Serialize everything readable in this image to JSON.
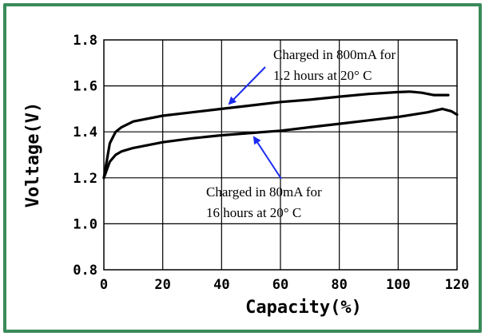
{
  "chart_data": {
    "type": "line",
    "title": "",
    "xlabel": "Capacity(%)",
    "ylabel": "Voltage(V)",
    "xlim": [
      0,
      120
    ],
    "ylim": [
      0.8,
      1.8
    ],
    "x_ticks": [
      "0",
      "20",
      "40",
      "60",
      "80",
      "100",
      "120"
    ],
    "y_ticks": [
      "0.8",
      "1.0",
      "1.2",
      "1.4",
      "1.6",
      "1.8"
    ],
    "grid": true,
    "series": [
      {
        "x": [
          0,
          2,
          4,
          6,
          10,
          20,
          30,
          40,
          50,
          60,
          70,
          80,
          90,
          100,
          104,
          108,
          112,
          117
        ],
        "y": [
          1.2,
          1.35,
          1.4,
          1.42,
          1.445,
          1.47,
          1.485,
          1.5,
          1.515,
          1.53,
          1.54,
          1.553,
          1.565,
          1.573,
          1.575,
          1.57,
          1.56,
          1.56
        ]
      },
      {
        "x": [
          0,
          2,
          4,
          6,
          10,
          20,
          30,
          40,
          50,
          60,
          70,
          80,
          90,
          100,
          110,
          115,
          118,
          120
        ],
        "y": [
          1.2,
          1.27,
          1.3,
          1.315,
          1.33,
          1.355,
          1.372,
          1.385,
          1.395,
          1.405,
          1.42,
          1.435,
          1.45,
          1.465,
          1.485,
          1.5,
          1.49,
          1.475
        ]
      }
    ],
    "annotations": [
      {
        "lines": [
          "Charged in 800mA for",
          "1.2 hours at 20° C"
        ]
      },
      {
        "lines": [
          "Charged in 80mA for",
          "16 hours at 20° C"
        ]
      }
    ]
  },
  "colors": {
    "border": "#3a8a5a",
    "arrow": "#1a2aee",
    "line": "#000000",
    "grid": "#000000"
  }
}
